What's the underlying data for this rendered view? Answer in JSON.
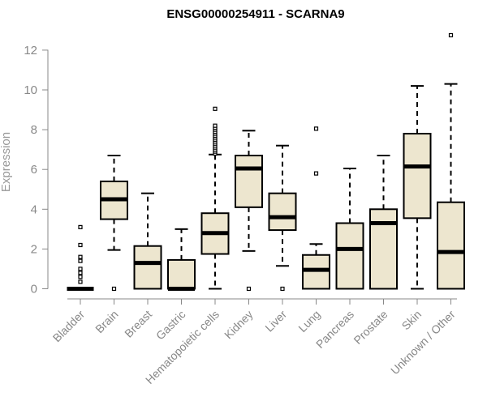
{
  "chart_data": {
    "type": "box",
    "title": "ENSG00000254911 - SCARNA9",
    "xlabel": "",
    "ylabel": "Expression",
    "ylim": [
      0,
      12.8
    ],
    "yticks": [
      0,
      2,
      4,
      6,
      8,
      10,
      12
    ],
    "grid": false,
    "colors": {
      "box_fill": "#ede6cf",
      "stroke": "#000000",
      "axis_text": "#888888"
    },
    "categories": [
      "Bladder",
      "Brain",
      "Breast",
      "Gastric",
      "Hematopoietic cells",
      "Kidney",
      "Liver",
      "Lung",
      "Pancreas",
      "Prostate",
      "Skin",
      "Unknown / Other"
    ],
    "series": [
      {
        "name": "Bladder",
        "q1": 0,
        "median": 0,
        "q3": 0,
        "whisker_low": 0,
        "whisker_high": 0,
        "outliers": [
          0.35,
          0.6,
          0.8,
          1.0,
          1.4,
          1.6,
          2.2,
          3.1
        ]
      },
      {
        "name": "Brain",
        "q1": 3.5,
        "median": 4.5,
        "q3": 5.4,
        "whisker_low": 1.95,
        "whisker_high": 6.7,
        "outliers": [
          0
        ]
      },
      {
        "name": "Breast",
        "q1": 0,
        "median": 1.3,
        "q3": 2.15,
        "whisker_low": 0,
        "whisker_high": 4.8,
        "outliers": []
      },
      {
        "name": "Gastric",
        "q1": 0,
        "median": 0,
        "q3": 1.45,
        "whisker_low": 0,
        "whisker_high": 3.0,
        "outliers": []
      },
      {
        "name": "Hematopoietic cells",
        "q1": 1.75,
        "median": 2.8,
        "q3": 3.8,
        "whisker_low": 0,
        "whisker_high": 6.75,
        "outliers": [
          6.8,
          6.9,
          7.0,
          7.1,
          7.2,
          7.3,
          7.4,
          7.5,
          7.6,
          7.7,
          7.8,
          7.9,
          8.0,
          8.1,
          8.2,
          9.05
        ]
      },
      {
        "name": "Kidney",
        "q1": 4.1,
        "median": 6.05,
        "q3": 6.7,
        "whisker_low": 1.9,
        "whisker_high": 7.95,
        "outliers": [
          0
        ]
      },
      {
        "name": "Liver",
        "q1": 2.95,
        "median": 3.6,
        "q3": 4.8,
        "whisker_low": 1.15,
        "whisker_high": 7.2,
        "outliers": [
          0
        ]
      },
      {
        "name": "Lung",
        "q1": 0,
        "median": 0.95,
        "q3": 1.7,
        "whisker_low": 0,
        "whisker_high": 2.25,
        "outliers": [
          5.8,
          8.05
        ]
      },
      {
        "name": "Pancreas",
        "q1": 0,
        "median": 2.0,
        "q3": 3.3,
        "whisker_low": 0,
        "whisker_high": 6.05,
        "outliers": []
      },
      {
        "name": "Prostate",
        "q1": 0,
        "median": 3.3,
        "q3": 4.0,
        "whisker_low": 0,
        "whisker_high": 6.7,
        "outliers": []
      },
      {
        "name": "Skin",
        "q1": 3.55,
        "median": 6.15,
        "q3": 7.8,
        "whisker_low": 0,
        "whisker_high": 10.2,
        "outliers": []
      },
      {
        "name": "Unknown / Other",
        "q1": 0,
        "median": 1.85,
        "q3": 4.35,
        "whisker_low": 0,
        "whisker_high": 10.3,
        "outliers": [
          12.75
        ]
      }
    ]
  }
}
